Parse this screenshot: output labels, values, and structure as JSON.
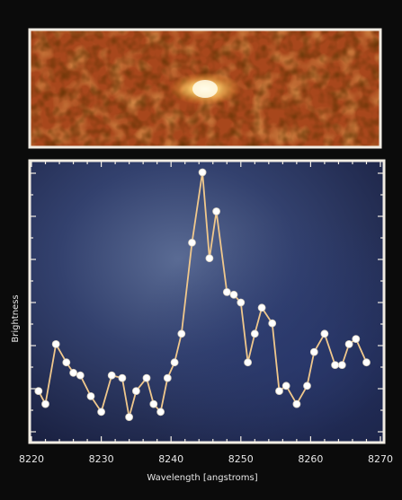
{
  "chart_data": {
    "type": "line",
    "xlabel": "Wavelength [angstroms]",
    "ylabel": "Brightness",
    "xlim": [
      8220,
      8270
    ],
    "ylim": [
      0,
      1
    ],
    "x_ticks": [
      8220,
      8230,
      8240,
      8250,
      8260,
      8270
    ],
    "grid": false,
    "series": [
      {
        "x": [
          8221,
          8222,
          8223.5,
          8225,
          8226,
          8227,
          8228.5,
          8230,
          8231.5,
          8233,
          8234,
          8235,
          8236.5,
          8237.5,
          8238.5,
          8239.5,
          8240.5,
          8241.5,
          8243,
          8244.5,
          8245.5,
          8246.5,
          8248,
          8249,
          8250,
          8251,
          8252,
          8253,
          8254.5,
          8255.5,
          8256.5,
          8258,
          8259.5,
          8260.5,
          8262,
          8263.5,
          8264.5,
          8265.5,
          8266.5,
          8268
        ],
        "values": [
          0.16,
          0.11,
          0.34,
          0.27,
          0.23,
          0.22,
          0.14,
          0.08,
          0.22,
          0.21,
          0.06,
          0.16,
          0.21,
          0.11,
          0.08,
          0.21,
          0.27,
          0.38,
          0.73,
          1.0,
          0.67,
          0.85,
          0.54,
          0.53,
          0.5,
          0.27,
          0.38,
          0.48,
          0.42,
          0.16,
          0.18,
          0.11,
          0.18,
          0.31,
          0.38,
          0.26,
          0.26,
          0.34,
          0.36,
          0.27
        ]
      }
    ]
  },
  "colors": {
    "line": "#f0c88c",
    "marker": "#ffffff",
    "frame": "#f2ede4",
    "plot_background": "#2b3760",
    "image_background": "#a8471c"
  }
}
